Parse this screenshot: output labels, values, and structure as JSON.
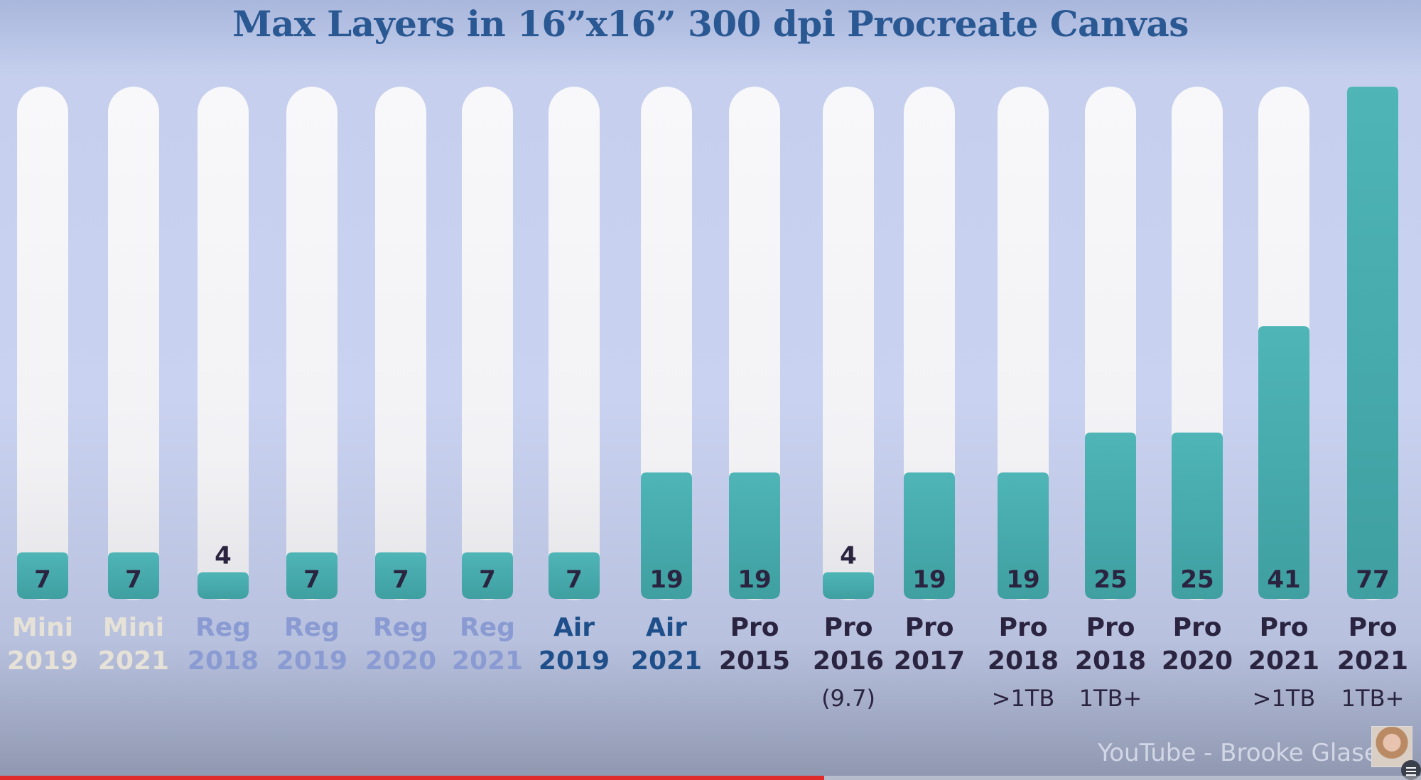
{
  "chart_data": {
    "type": "bar",
    "title": "Max Layers in 16”x16” 300 dpi Procreate Canvas",
    "ylim": [
      0,
      77
    ],
    "grid": false,
    "legend": "none",
    "categories": [
      {
        "line1": "Mini",
        "line2": "2019",
        "sub": ""
      },
      {
        "line1": "Mini",
        "line2": "2021",
        "sub": ""
      },
      {
        "line1": "Reg",
        "line2": "2018",
        "sub": ""
      },
      {
        "line1": "Reg",
        "line2": "2019",
        "sub": ""
      },
      {
        "line1": "Reg",
        "line2": "2020",
        "sub": ""
      },
      {
        "line1": "Reg",
        "line2": "2021",
        "sub": ""
      },
      {
        "line1": "Air",
        "line2": "2019",
        "sub": ""
      },
      {
        "line1": "Air",
        "line2": "2021",
        "sub": ""
      },
      {
        "line1": "Pro",
        "line2": "2015",
        "sub": ""
      },
      {
        "line1": "Pro",
        "line2": "2016",
        "sub": "(9.7)"
      },
      {
        "line1": "Pro",
        "line2": "2017",
        "sub": ""
      },
      {
        "line1": "Pro",
        "line2": "2018",
        "sub": ">1TB"
      },
      {
        "line1": "Pro",
        "line2": "2018",
        "sub": "1TB+"
      },
      {
        "line1": "Pro",
        "line2": "2020",
        "sub": ""
      },
      {
        "line1": "Pro",
        "line2": "2021",
        "sub": ">1TB"
      },
      {
        "line1": "Pro",
        "line2": "2021",
        "sub": "1TB+"
      }
    ],
    "values": [
      7,
      7,
      4,
      7,
      7,
      7,
      7,
      19,
      19,
      4,
      19,
      19,
      25,
      25,
      41,
      77
    ],
    "category_colors": [
      "#e6e2d8",
      "#e6e2d8",
      "#8a9bd3",
      "#8a9bd3",
      "#8a9bd3",
      "#8a9bd3",
      "#1f4f8a",
      "#1f4f8a",
      "#2b2440",
      "#2b2440",
      "#2b2440",
      "#2b2440",
      "#2b2440",
      "#2b2440",
      "#2b2440",
      "#2b2440"
    ],
    "colors": {
      "track": "#f6f6f8",
      "fill": "#4fb5b7",
      "fill_dark": "#3f9fa1",
      "value_text": "#2b2440",
      "value_text_light": "#f4f6f8"
    }
  },
  "watermark": "YouTube - Brooke Glaser",
  "video_progress": 0.58
}
